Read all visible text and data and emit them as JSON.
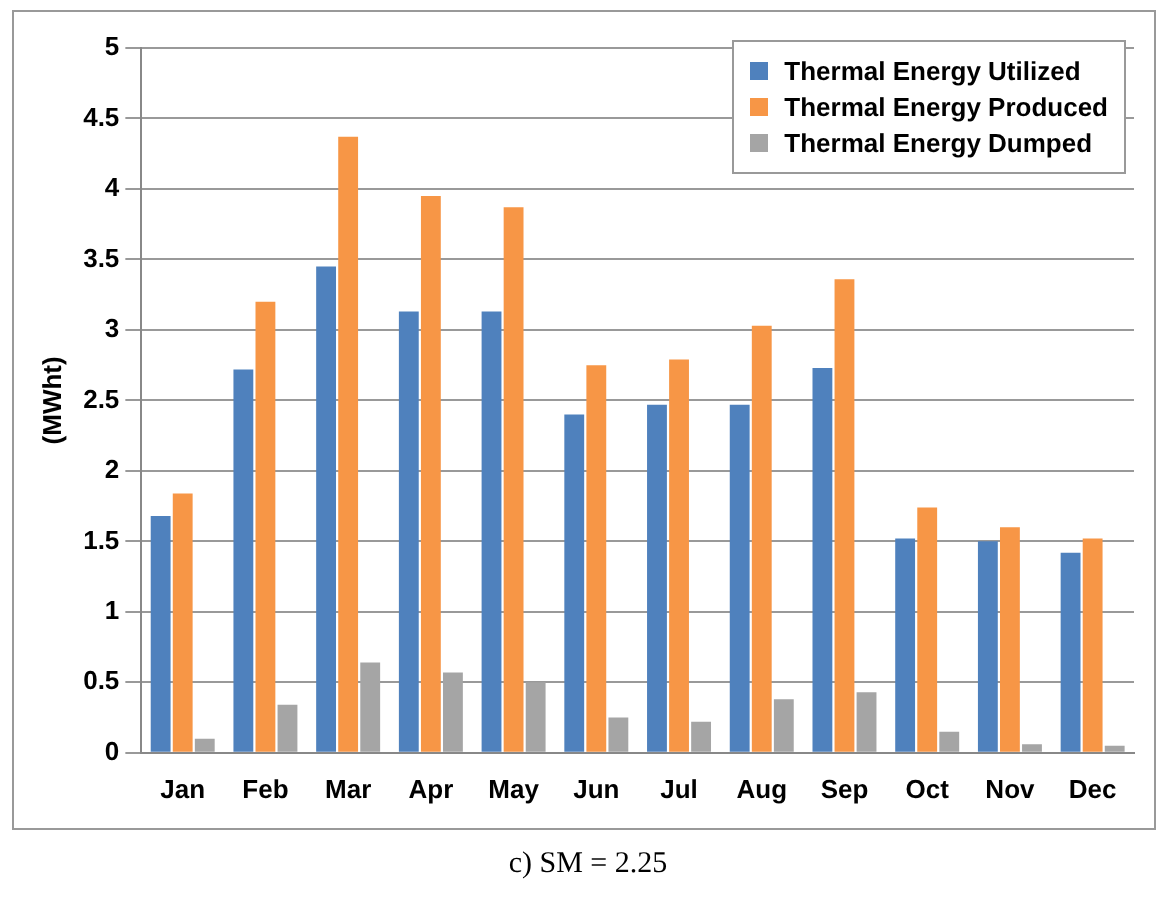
{
  "chart_data": {
    "type": "bar",
    "ylabel": "(MWht)",
    "categories": [
      "Jan",
      "Feb",
      "Mar",
      "Apr",
      "May",
      "Jun",
      "Jul",
      "Aug",
      "Sep",
      "Oct",
      "Nov",
      "Dec"
    ],
    "series": [
      {
        "name": "Thermal Energy Utilized",
        "color": "#4f81bd",
        "values": [
          1.68,
          2.72,
          3.45,
          3.13,
          3.13,
          2.4,
          2.47,
          2.47,
          2.73,
          1.52,
          1.5,
          1.42
        ]
      },
      {
        "name": "Thermal Energy Produced",
        "color": "#f79646",
        "values": [
          1.84,
          3.2,
          4.37,
          3.95,
          3.87,
          2.75,
          2.79,
          3.03,
          3.36,
          1.74,
          1.6,
          1.52
        ]
      },
      {
        "name": "Thermal Energy Dumped",
        "color": "#a5a5a5",
        "values": [
          0.1,
          0.34,
          0.64,
          0.57,
          0.5,
          0.25,
          0.22,
          0.38,
          0.43,
          0.15,
          0.06,
          0.05
        ]
      }
    ],
    "ylim": [
      0,
      5
    ],
    "yticks": [
      0,
      0.5,
      1,
      1.5,
      2,
      2.5,
      3,
      3.5,
      4,
      4.5,
      5
    ],
    "grid": "y",
    "legend": "top right",
    "annotations": [
      "c) SM = 2.25"
    ]
  }
}
